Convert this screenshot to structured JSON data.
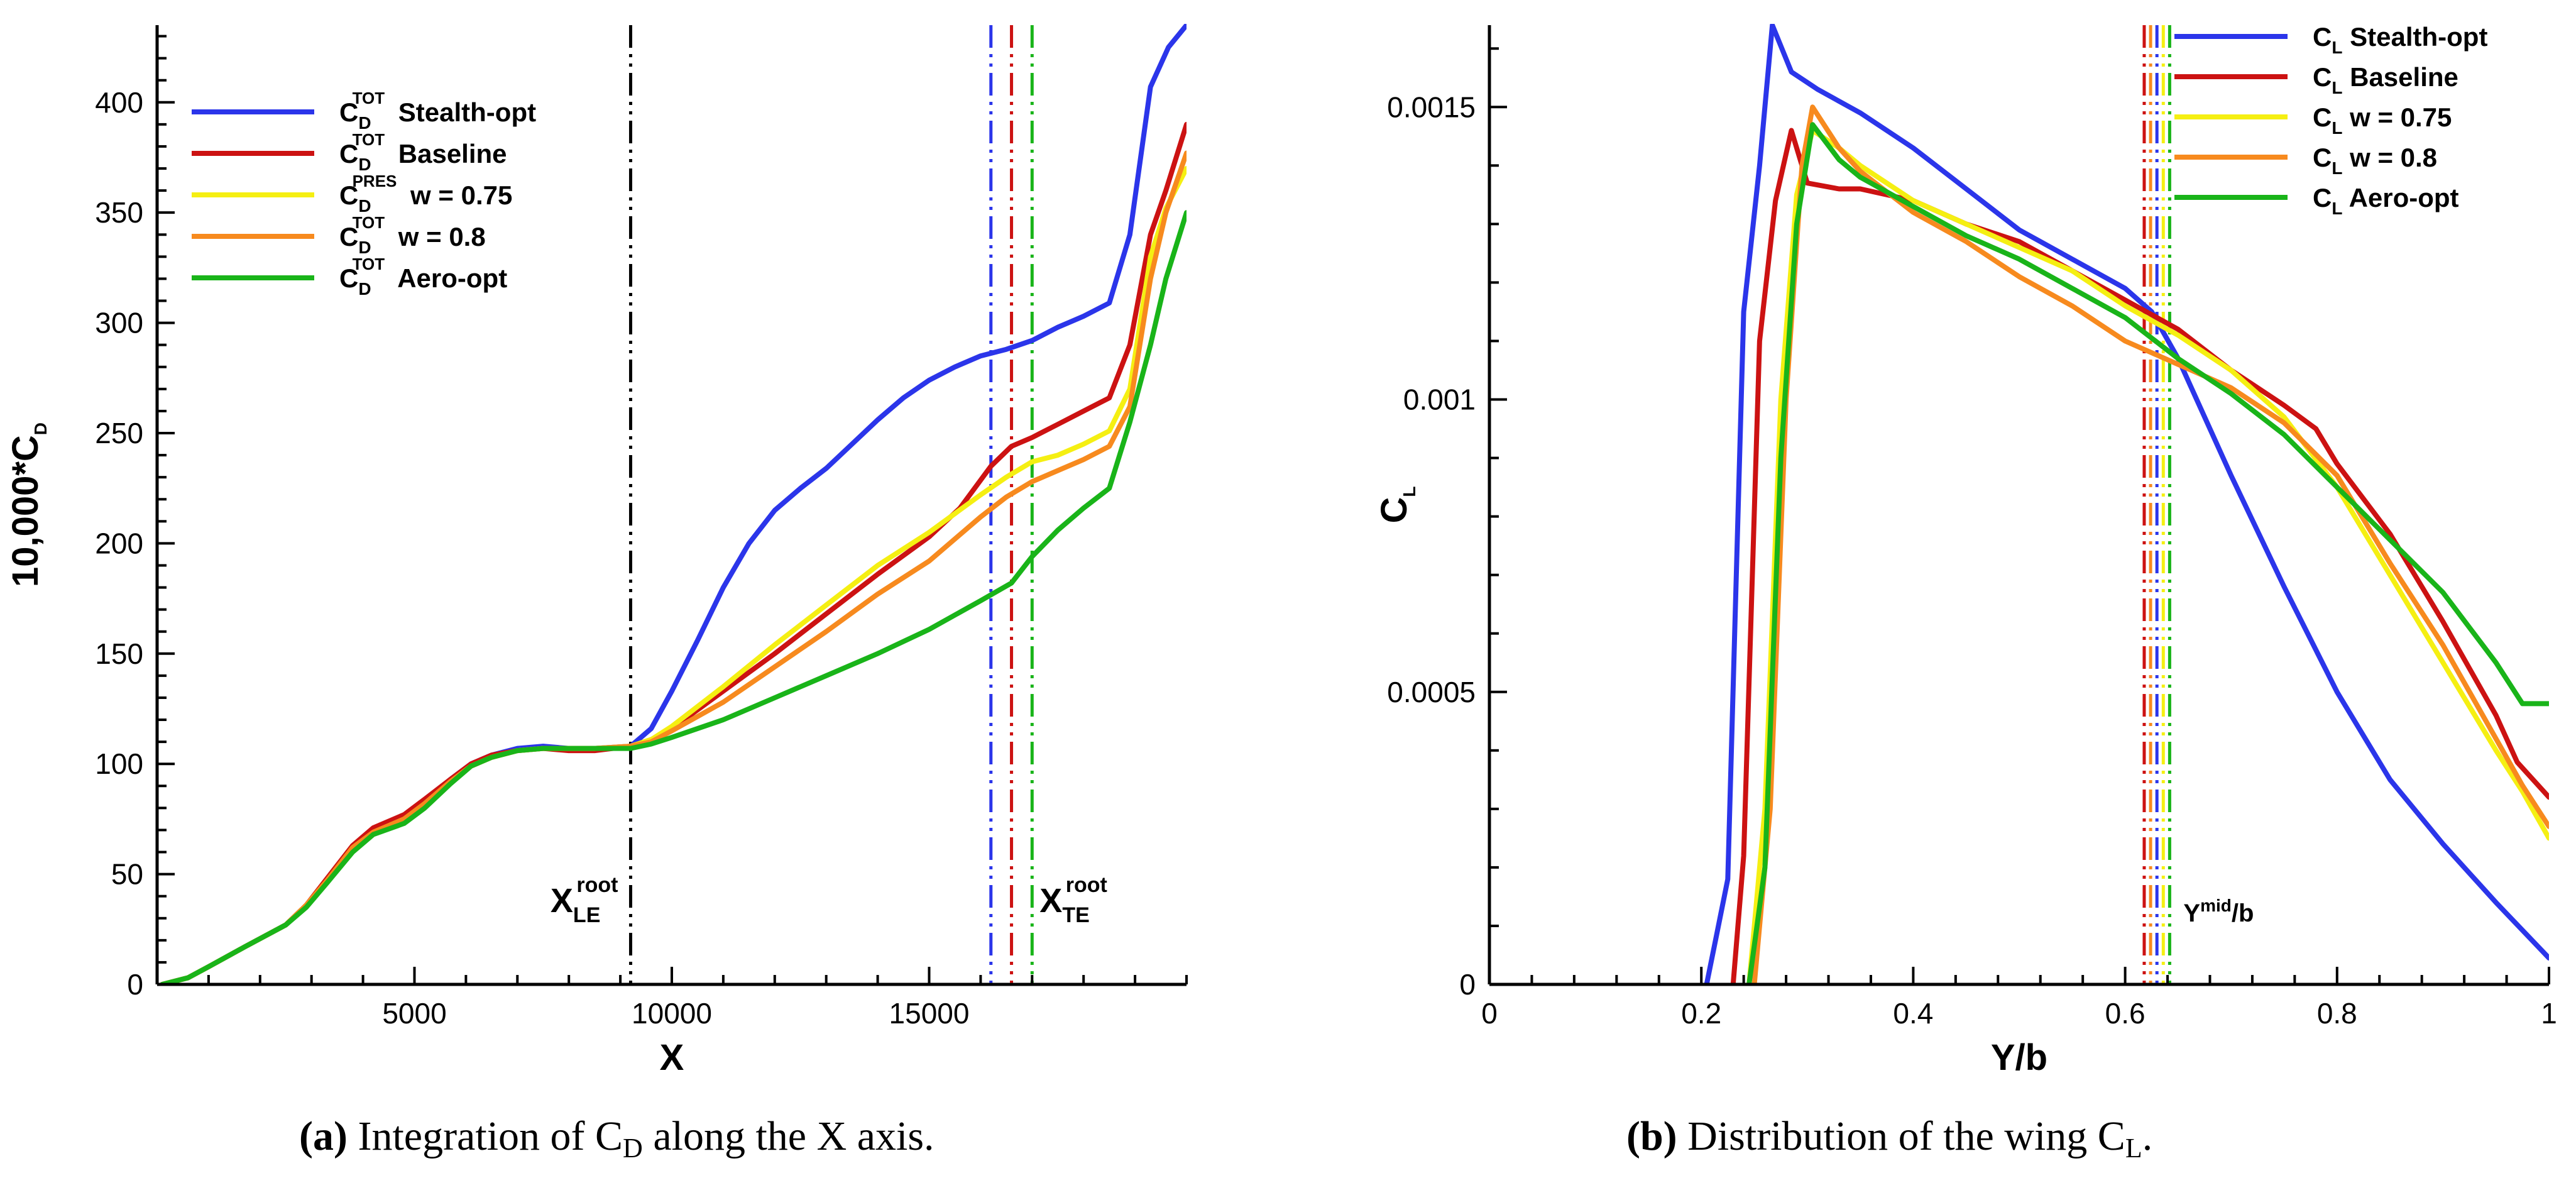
{
  "chart_data": [
    {
      "type": "line",
      "panel": "a",
      "title": "",
      "xlabel": "X",
      "ylabel": "10,000*C",
      "ylabel_sub": "D",
      "xlim": [
        0,
        20000
      ],
      "ylim": [
        0,
        435
      ],
      "xticks": [
        5000,
        10000,
        15000
      ],
      "yticks": [
        0,
        50,
        100,
        150,
        200,
        250,
        300,
        350,
        400
      ],
      "legend_location": "top-left",
      "series": [
        {
          "name": "Stealth-opt",
          "base": "C",
          "sub": "D",
          "sup": "TOT",
          "color": "#2b35ea",
          "x": [
            100,
            600,
            1000,
            1700,
            2500,
            2900,
            3300,
            3800,
            4200,
            4800,
            5200,
            5700,
            6100,
            6500,
            7000,
            7500,
            8000,
            8500,
            9200,
            9600,
            10000,
            10500,
            11000,
            11500,
            12000,
            12500,
            13000,
            13500,
            14000,
            14500,
            15000,
            15500,
            16000,
            16500,
            17000,
            17500,
            18000,
            18500,
            18900,
            19300,
            19650,
            20000
          ],
          "y": [
            0,
            3,
            8,
            17,
            27,
            36,
            47,
            62,
            70,
            76,
            83,
            93,
            100,
            104,
            107,
            108,
            107,
            107,
            108,
            116,
            133,
            156,
            180,
            200,
            215,
            225,
            234,
            245,
            256,
            266,
            274,
            280,
            285,
            288,
            292,
            298,
            303,
            309,
            340,
            407,
            425,
            435
          ]
        },
        {
          "name": "Baseline",
          "base": "C",
          "sub": "D",
          "sup": "TOT",
          "color": "#cc1212",
          "x": [
            100,
            600,
            1000,
            1700,
            2500,
            2900,
            3300,
            3800,
            4200,
            4800,
            5200,
            5700,
            6100,
            6500,
            7000,
            7500,
            8000,
            8500,
            9200,
            9600,
            10000,
            11000,
            12000,
            13000,
            14000,
            15000,
            15600,
            16200,
            16600,
            17000,
            17500,
            18000,
            18500,
            18900,
            19300,
            19600,
            20000
          ],
          "y": [
            0,
            3,
            8,
            17,
            27,
            36,
            48,
            63,
            71,
            77,
            84,
            93,
            100,
            104,
            106,
            107,
            106,
            106,
            108,
            111,
            116,
            133,
            150,
            168,
            186,
            203,
            216,
            235,
            244,
            248,
            254,
            260,
            266,
            290,
            340,
            360,
            390
          ]
        },
        {
          "name": "w = 0.75",
          "base": "C",
          "sub": "D",
          "sup": "PRES",
          "color": "#f5ef12",
          "x": [
            100,
            600,
            1000,
            1700,
            2500,
            2900,
            3300,
            3800,
            4200,
            4800,
            5200,
            5700,
            6100,
            6500,
            7000,
            7500,
            8000,
            8500,
            9200,
            9600,
            10000,
            11000,
            12000,
            13000,
            14000,
            15000,
            16000,
            16500,
            17000,
            17500,
            18000,
            18500,
            18900,
            19300,
            19600,
            20000
          ],
          "y": [
            0,
            3,
            8,
            17,
            27,
            36,
            47,
            62,
            69,
            75,
            82,
            92,
            99,
            103,
            106,
            107,
            107,
            107,
            108,
            111,
            117,
            135,
            154,
            172,
            190,
            205,
            222,
            230,
            237,
            240,
            245,
            251,
            270,
            330,
            352,
            370
          ]
        },
        {
          "name": "w = 0.8",
          "base": "C",
          "sub": "D",
          "sup": "TOT",
          "color": "#f78a1e",
          "x": [
            100,
            600,
            1000,
            1700,
            2500,
            2900,
            3300,
            3800,
            4200,
            4800,
            5200,
            5700,
            6100,
            6500,
            7000,
            7500,
            8000,
            8500,
            9200,
            9600,
            10000,
            11000,
            12000,
            13000,
            14000,
            15000,
            16000,
            16500,
            17000,
            17500,
            18000,
            18500,
            18900,
            19300,
            19600,
            20000
          ],
          "y": [
            0,
            3,
            8,
            17,
            27,
            36,
            47,
            62,
            69,
            75,
            82,
            92,
            99,
            103,
            106,
            107,
            107,
            107,
            108,
            110,
            115,
            128,
            144,
            160,
            177,
            192,
            212,
            221,
            228,
            233,
            238,
            244,
            262,
            320,
            350,
            377
          ]
        },
        {
          "name": "Aero-opt",
          "base": "C",
          "sub": "D",
          "sup": "TOT",
          "color": "#19b419",
          "x": [
            100,
            600,
            1000,
            1700,
            2500,
            2900,
            3300,
            3800,
            4200,
            4800,
            5200,
            5700,
            6100,
            6500,
            7000,
            7500,
            8000,
            8500,
            9200,
            9600,
            10000,
            11000,
            12000,
            13000,
            14000,
            15000,
            16000,
            16600,
            17000,
            17500,
            18000,
            18500,
            18900,
            19300,
            19600,
            20000
          ],
          "y": [
            0,
            3,
            8,
            17,
            27,
            35,
            46,
            60,
            68,
            73,
            80,
            91,
            99,
            103,
            106,
            107,
            107,
            107,
            107,
            109,
            112,
            120,
            130,
            140,
            150,
            161,
            174,
            182,
            194,
            206,
            216,
            225,
            255,
            290,
            320,
            350
          ]
        }
      ],
      "vlines": [
        {
          "x": 9200,
          "color": "#000000",
          "label": "X",
          "label_sub": "LE",
          "label_sup": "root"
        },
        {
          "x": 16200,
          "color": "#2b35ea"
        },
        {
          "x": 16600,
          "color": "#cc1212"
        },
        {
          "x": 17000,
          "color": "#19b419",
          "label": "X",
          "label_sub": "TE",
          "label_sup": "root"
        }
      ]
    },
    {
      "type": "line",
      "panel": "b",
      "title": "",
      "xlabel": "Y/b",
      "ylabel": "C",
      "ylabel_sub": "L",
      "xlim": [
        0,
        1
      ],
      "ylim": [
        0,
        0.00164
      ],
      "xticks": [
        0,
        0.2,
        0.4,
        0.6,
        0.8,
        1
      ],
      "xtick_labels": [
        "0",
        "0.2",
        "0.4",
        "0.6",
        "0.8",
        "1"
      ],
      "yticks": [
        0,
        0.0005,
        0.001,
        0.0015
      ],
      "ytick_labels": [
        "0",
        "0.0005",
        "0.001",
        "0.0015"
      ],
      "legend_location": "top-right",
      "series": [
        {
          "name": "Stealth-opt",
          "base": "C",
          "sub": "L",
          "color": "#2b35ea",
          "x": [
            0.205,
            0.215,
            0.225,
            0.24,
            0.255,
            0.267,
            0.285,
            0.31,
            0.35,
            0.4,
            0.45,
            0.5,
            0.55,
            0.6,
            0.625,
            0.65,
            0.7,
            0.75,
            0.8,
            0.85,
            0.9,
            0.95,
            1.0
          ],
          "y": [
            0,
            9e-05,
            0.00018,
            0.00115,
            0.0014,
            0.00164,
            0.00156,
            0.00153,
            0.00149,
            0.00143,
            0.00136,
            0.00129,
            0.00124,
            0.00119,
            0.00115,
            0.00107,
            0.00087,
            0.00068,
            0.0005,
            0.00035,
            0.00024,
            0.00014,
            4.5e-05
          ]
        },
        {
          "name": "Baseline",
          "base": "C",
          "sub": "L",
          "color": "#cc1212",
          "x": [
            0.23,
            0.24,
            0.255,
            0.27,
            0.285,
            0.3,
            0.33,
            0.35,
            0.4,
            0.45,
            0.5,
            0.55,
            0.6,
            0.65,
            0.7,
            0.75,
            0.78,
            0.8,
            0.85,
            0.9,
            0.95,
            0.97,
            1.0
          ],
          "y": [
            0,
            0.00022,
            0.0011,
            0.00134,
            0.00146,
            0.00137,
            0.00136,
            0.00136,
            0.00134,
            0.0013,
            0.00127,
            0.00122,
            0.00117,
            0.00112,
            0.00105,
            0.00099,
            0.00095,
            0.00089,
            0.00077,
            0.00062,
            0.00046,
            0.00038,
            0.00032
          ]
        },
        {
          "name": "w = 0.75",
          "base": "C",
          "sub": "L",
          "color": "#f5ef12",
          "x": [
            0.245,
            0.26,
            0.275,
            0.29,
            0.305,
            0.33,
            0.35,
            0.4,
            0.45,
            0.5,
            0.55,
            0.6,
            0.65,
            0.7,
            0.75,
            0.8,
            0.85,
            0.9,
            0.95,
            0.975,
            1.0
          ],
          "y": [
            0,
            0.0003,
            0.001,
            0.00135,
            0.00146,
            0.00143,
            0.0014,
            0.00134,
            0.0013,
            0.00126,
            0.00122,
            0.00116,
            0.00111,
            0.00105,
            0.00097,
            0.00085,
            0.0007,
            0.00055,
            0.0004,
            0.00033,
            0.00025
          ]
        },
        {
          "name": "w = 0.8",
          "base": "C",
          "sub": "L",
          "color": "#f78a1e",
          "x": [
            0.25,
            0.265,
            0.28,
            0.295,
            0.305,
            0.33,
            0.35,
            0.4,
            0.45,
            0.5,
            0.55,
            0.6,
            0.65,
            0.7,
            0.75,
            0.8,
            0.85,
            0.9,
            0.95,
            0.975,
            1.0
          ],
          "y": [
            0,
            0.0003,
            0.001,
            0.0014,
            0.0015,
            0.00143,
            0.00139,
            0.00132,
            0.00127,
            0.00121,
            0.00116,
            0.0011,
            0.00106,
            0.00102,
            0.00096,
            0.00087,
            0.00072,
            0.00058,
            0.00042,
            0.00034,
            0.00027
          ]
        },
        {
          "name": "Aero-opt",
          "base": "C",
          "sub": "L",
          "color": "#19b419",
          "x": [
            0.245,
            0.26,
            0.275,
            0.29,
            0.305,
            0.33,
            0.35,
            0.4,
            0.45,
            0.5,
            0.55,
            0.6,
            0.65,
            0.7,
            0.75,
            0.8,
            0.85,
            0.9,
            0.95,
            0.975,
            1.0
          ],
          "y": [
            0,
            0.0002,
            0.0009,
            0.0013,
            0.00147,
            0.00141,
            0.00138,
            0.00133,
            0.00128,
            0.00124,
            0.00119,
            0.00114,
            0.00107,
            0.00101,
            0.00094,
            0.00085,
            0.00076,
            0.00067,
            0.00055,
            0.00048,
            0.00048
          ]
        }
      ],
      "vlines": [
        {
          "x": 0.618,
          "color": "#cc1212"
        },
        {
          "x": 0.624,
          "color": "#f78a1e"
        },
        {
          "x": 0.63,
          "color": "#2b35ea"
        },
        {
          "x": 0.636,
          "color": "#f5ef12"
        },
        {
          "x": 0.642,
          "color": "#19b419",
          "label": "Y",
          "label_sup": "mid",
          "label_suffix": "/b"
        }
      ]
    }
  ],
  "captions": [
    {
      "tag": "(a)",
      "text_before": " Integration of C",
      "sub": "D",
      "text_after": " along the X axis."
    },
    {
      "tag": "(b)",
      "text_before": " Distribution of the wing C",
      "sub": "L",
      "text_after": "."
    }
  ]
}
